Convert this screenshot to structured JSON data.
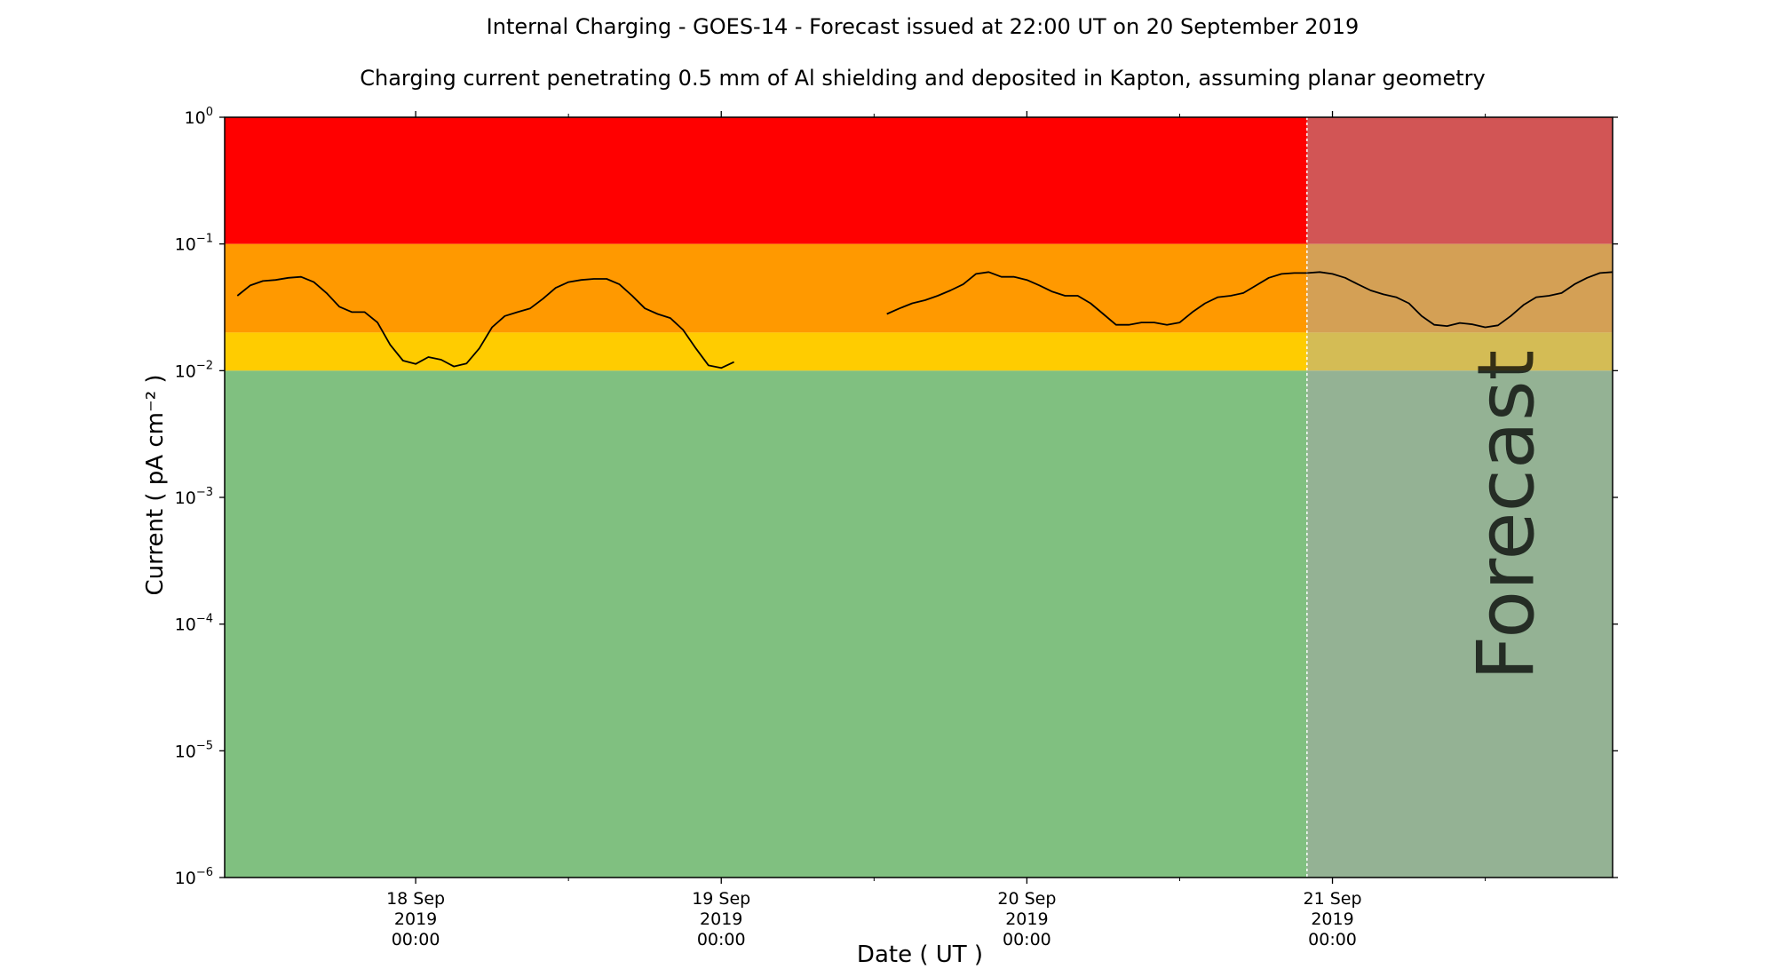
{
  "chart_data": {
    "type": "line",
    "title": "Internal Charging - GOES-14 - Forecast issued at 22:00 UT on 20 September 2019",
    "subtitle": "Charging current penetrating 0.5 mm of Al shielding and deposited in Kapton, assuming planar geometry",
    "xlabel": "Date ( UT )",
    "ylabel": "Current ( pA cm⁻² )",
    "yscale": "log",
    "ylim": [
      1e-06,
      1
    ],
    "xlim": [
      "2019-09-17 09:00",
      "2019-09-21 22:00"
    ],
    "forecast_start": "2019-09-20 22:00",
    "forecast_label": "Forecast",
    "y_ticks": [
      {
        "base": "10",
        "exp": "0",
        "value": 1
      },
      {
        "base": "10",
        "exp": "−1",
        "value": 0.1
      },
      {
        "base": "10",
        "exp": "−2",
        "value": 0.01
      },
      {
        "base": "10",
        "exp": "−3",
        "value": 0.001
      },
      {
        "base": "10",
        "exp": "−4",
        "value": 0.0001
      },
      {
        "base": "10",
        "exp": "−5",
        "value": 1e-05
      },
      {
        "base": "10",
        "exp": "−6",
        "value": 1e-06
      }
    ],
    "x_ticks": [
      {
        "date": "2019-09-18 00:00",
        "line1": "18 Sep",
        "line2": "2019",
        "line3": "00:00"
      },
      {
        "date": "2019-09-19 00:00",
        "line1": "19 Sep",
        "line2": "2019",
        "line3": "00:00"
      },
      {
        "date": "2019-09-20 00:00",
        "line1": "20 Sep",
        "line2": "2019",
        "line3": "00:00"
      },
      {
        "date": "2019-09-21 00:00",
        "line1": "21 Sep",
        "line2": "2019",
        "line3": "00:00"
      }
    ],
    "x_minor_ticks": [
      "2019-09-18 12:00",
      "2019-09-19 12:00",
      "2019-09-20 12:00",
      "2019-09-21 12:00"
    ],
    "bands": [
      {
        "level": "red",
        "from": 0.1,
        "to": 1,
        "color": "#ff0000",
        "forecast_color": "#d25555"
      },
      {
        "level": "orange",
        "from": 0.02,
        "to": 0.1,
        "color": "#ff9900",
        "forecast_color": "#d4a055"
      },
      {
        "level": "yellow",
        "from": 0.01,
        "to": 0.02,
        "color": "#ffcc00",
        "forecast_color": "#d4bc55"
      },
      {
        "level": "green",
        "from": 1e-06,
        "to": 0.01,
        "color": "#80c080",
        "forecast_color": "#94b294"
      }
    ],
    "series": [
      {
        "color": "#000000",
        "segments": [
          {
            "x": [
              "2019-09-17 10:00",
              "2019-09-17 11:00",
              "2019-09-17 12:00",
              "2019-09-17 13:00",
              "2019-09-17 14:00",
              "2019-09-17 15:00",
              "2019-09-17 16:00",
              "2019-09-17 17:00",
              "2019-09-17 18:00",
              "2019-09-17 19:00",
              "2019-09-17 20:00",
              "2019-09-17 21:00",
              "2019-09-17 22:00",
              "2019-09-17 23:00",
              "2019-09-18 00:00",
              "2019-09-18 01:00",
              "2019-09-18 02:00",
              "2019-09-18 03:00",
              "2019-09-18 04:00",
              "2019-09-18 05:00",
              "2019-09-18 06:00",
              "2019-09-18 07:00",
              "2019-09-18 08:00",
              "2019-09-18 09:00",
              "2019-09-18 10:00",
              "2019-09-18 11:00",
              "2019-09-18 12:00",
              "2019-09-18 13:00",
              "2019-09-18 14:00",
              "2019-09-18 15:00",
              "2019-09-18 16:00",
              "2019-09-18 17:00",
              "2019-09-18 18:00",
              "2019-09-18 19:00",
              "2019-09-18 20:00",
              "2019-09-18 21:00",
              "2019-09-18 22:00",
              "2019-09-18 23:00",
              "2019-09-19 00:00",
              "2019-09-19 01:00",
              "2019-09-19 02:00",
              "2019-09-19 03:00",
              "2019-09-19 04:00",
              "2019-09-19 05:00",
              "2019-09-19 06:00",
              "2019-09-19 07:00",
              "2019-09-19 08:00"
            ],
            "y": [
              0.039,
              0.047,
              0.051,
              0.052,
              0.054,
              0.055,
              0.05,
              0.041,
              0.032,
              0.029,
              0.029,
              0.024,
              0.016,
              0.012,
              0.0113,
              0.0128,
              0.0122,
              0.0108,
              0.0114,
              0.015,
              0.022,
              0.027,
              0.029,
              0.031,
              0.037,
              0.045,
              0.05,
              0.052,
              0.053,
              0.053,
              0.048,
              0.039,
              0.031,
              0.028,
              0.026,
              0.021,
              0.015,
              0.011,
              0.0105,
              0.0117,
              null,
              null,
              null,
              null,
              null,
              null,
              null
            ]
          },
          {
            "x": [
              "2019-09-19 13:00",
              "2019-09-19 14:00",
              "2019-09-19 15:00",
              "2019-09-19 16:00",
              "2019-09-19 17:00",
              "2019-09-19 18:00",
              "2019-09-19 19:00",
              "2019-09-19 20:00",
              "2019-09-19 21:00",
              "2019-09-19 22:00",
              "2019-09-19 23:00",
              "2019-09-20 00:00",
              "2019-09-20 01:00",
              "2019-09-20 02:00",
              "2019-09-20 03:00",
              "2019-09-20 04:00",
              "2019-09-20 05:00",
              "2019-09-20 06:00",
              "2019-09-20 07:00",
              "2019-09-20 08:00",
              "2019-09-20 09:00",
              "2019-09-20 10:00",
              "2019-09-20 11:00",
              "2019-09-20 12:00",
              "2019-09-20 13:00",
              "2019-09-20 14:00",
              "2019-09-20 15:00",
              "2019-09-20 16:00",
              "2019-09-20 17:00",
              "2019-09-20 18:00",
              "2019-09-20 19:00",
              "2019-09-20 20:00",
              "2019-09-20 21:00",
              "2019-09-20 22:00",
              "2019-09-20 23:00",
              "2019-09-21 00:00",
              "2019-09-21 01:00",
              "2019-09-21 02:00",
              "2019-09-21 03:00",
              "2019-09-21 04:00",
              "2019-09-21 05:00",
              "2019-09-21 06:00",
              "2019-09-21 07:00",
              "2019-09-21 08:00",
              "2019-09-21 09:00",
              "2019-09-21 10:00",
              "2019-09-21 11:00",
              "2019-09-21 12:00",
              "2019-09-21 13:00",
              "2019-09-21 14:00",
              "2019-09-21 15:00",
              "2019-09-21 16:00",
              "2019-09-21 17:00",
              "2019-09-21 18:00",
              "2019-09-21 19:00",
              "2019-09-21 20:00",
              "2019-09-21 21:00",
              "2019-09-21 22:00"
            ],
            "y": [
              0.028,
              0.031,
              0.034,
              0.036,
              0.039,
              0.043,
              0.048,
              0.058,
              0.06,
              0.055,
              0.055,
              0.052,
              0.047,
              0.042,
              0.039,
              0.039,
              0.034,
              0.028,
              0.023,
              0.023,
              0.024,
              0.024,
              0.023,
              0.024,
              0.029,
              0.034,
              0.038,
              0.039,
              0.041,
              0.047,
              0.054,
              0.058,
              0.059,
              0.059,
              0.06,
              0.058,
              0.054,
              0.048,
              0.043,
              0.04,
              0.038,
              0.034,
              0.027,
              0.023,
              0.0225,
              0.0238,
              0.0232,
              0.022,
              0.0228,
              0.027,
              0.033,
              0.038,
              0.039,
              0.041,
              0.048,
              0.054,
              0.059,
              0.06
            ]
          }
        ]
      }
    ]
  }
}
